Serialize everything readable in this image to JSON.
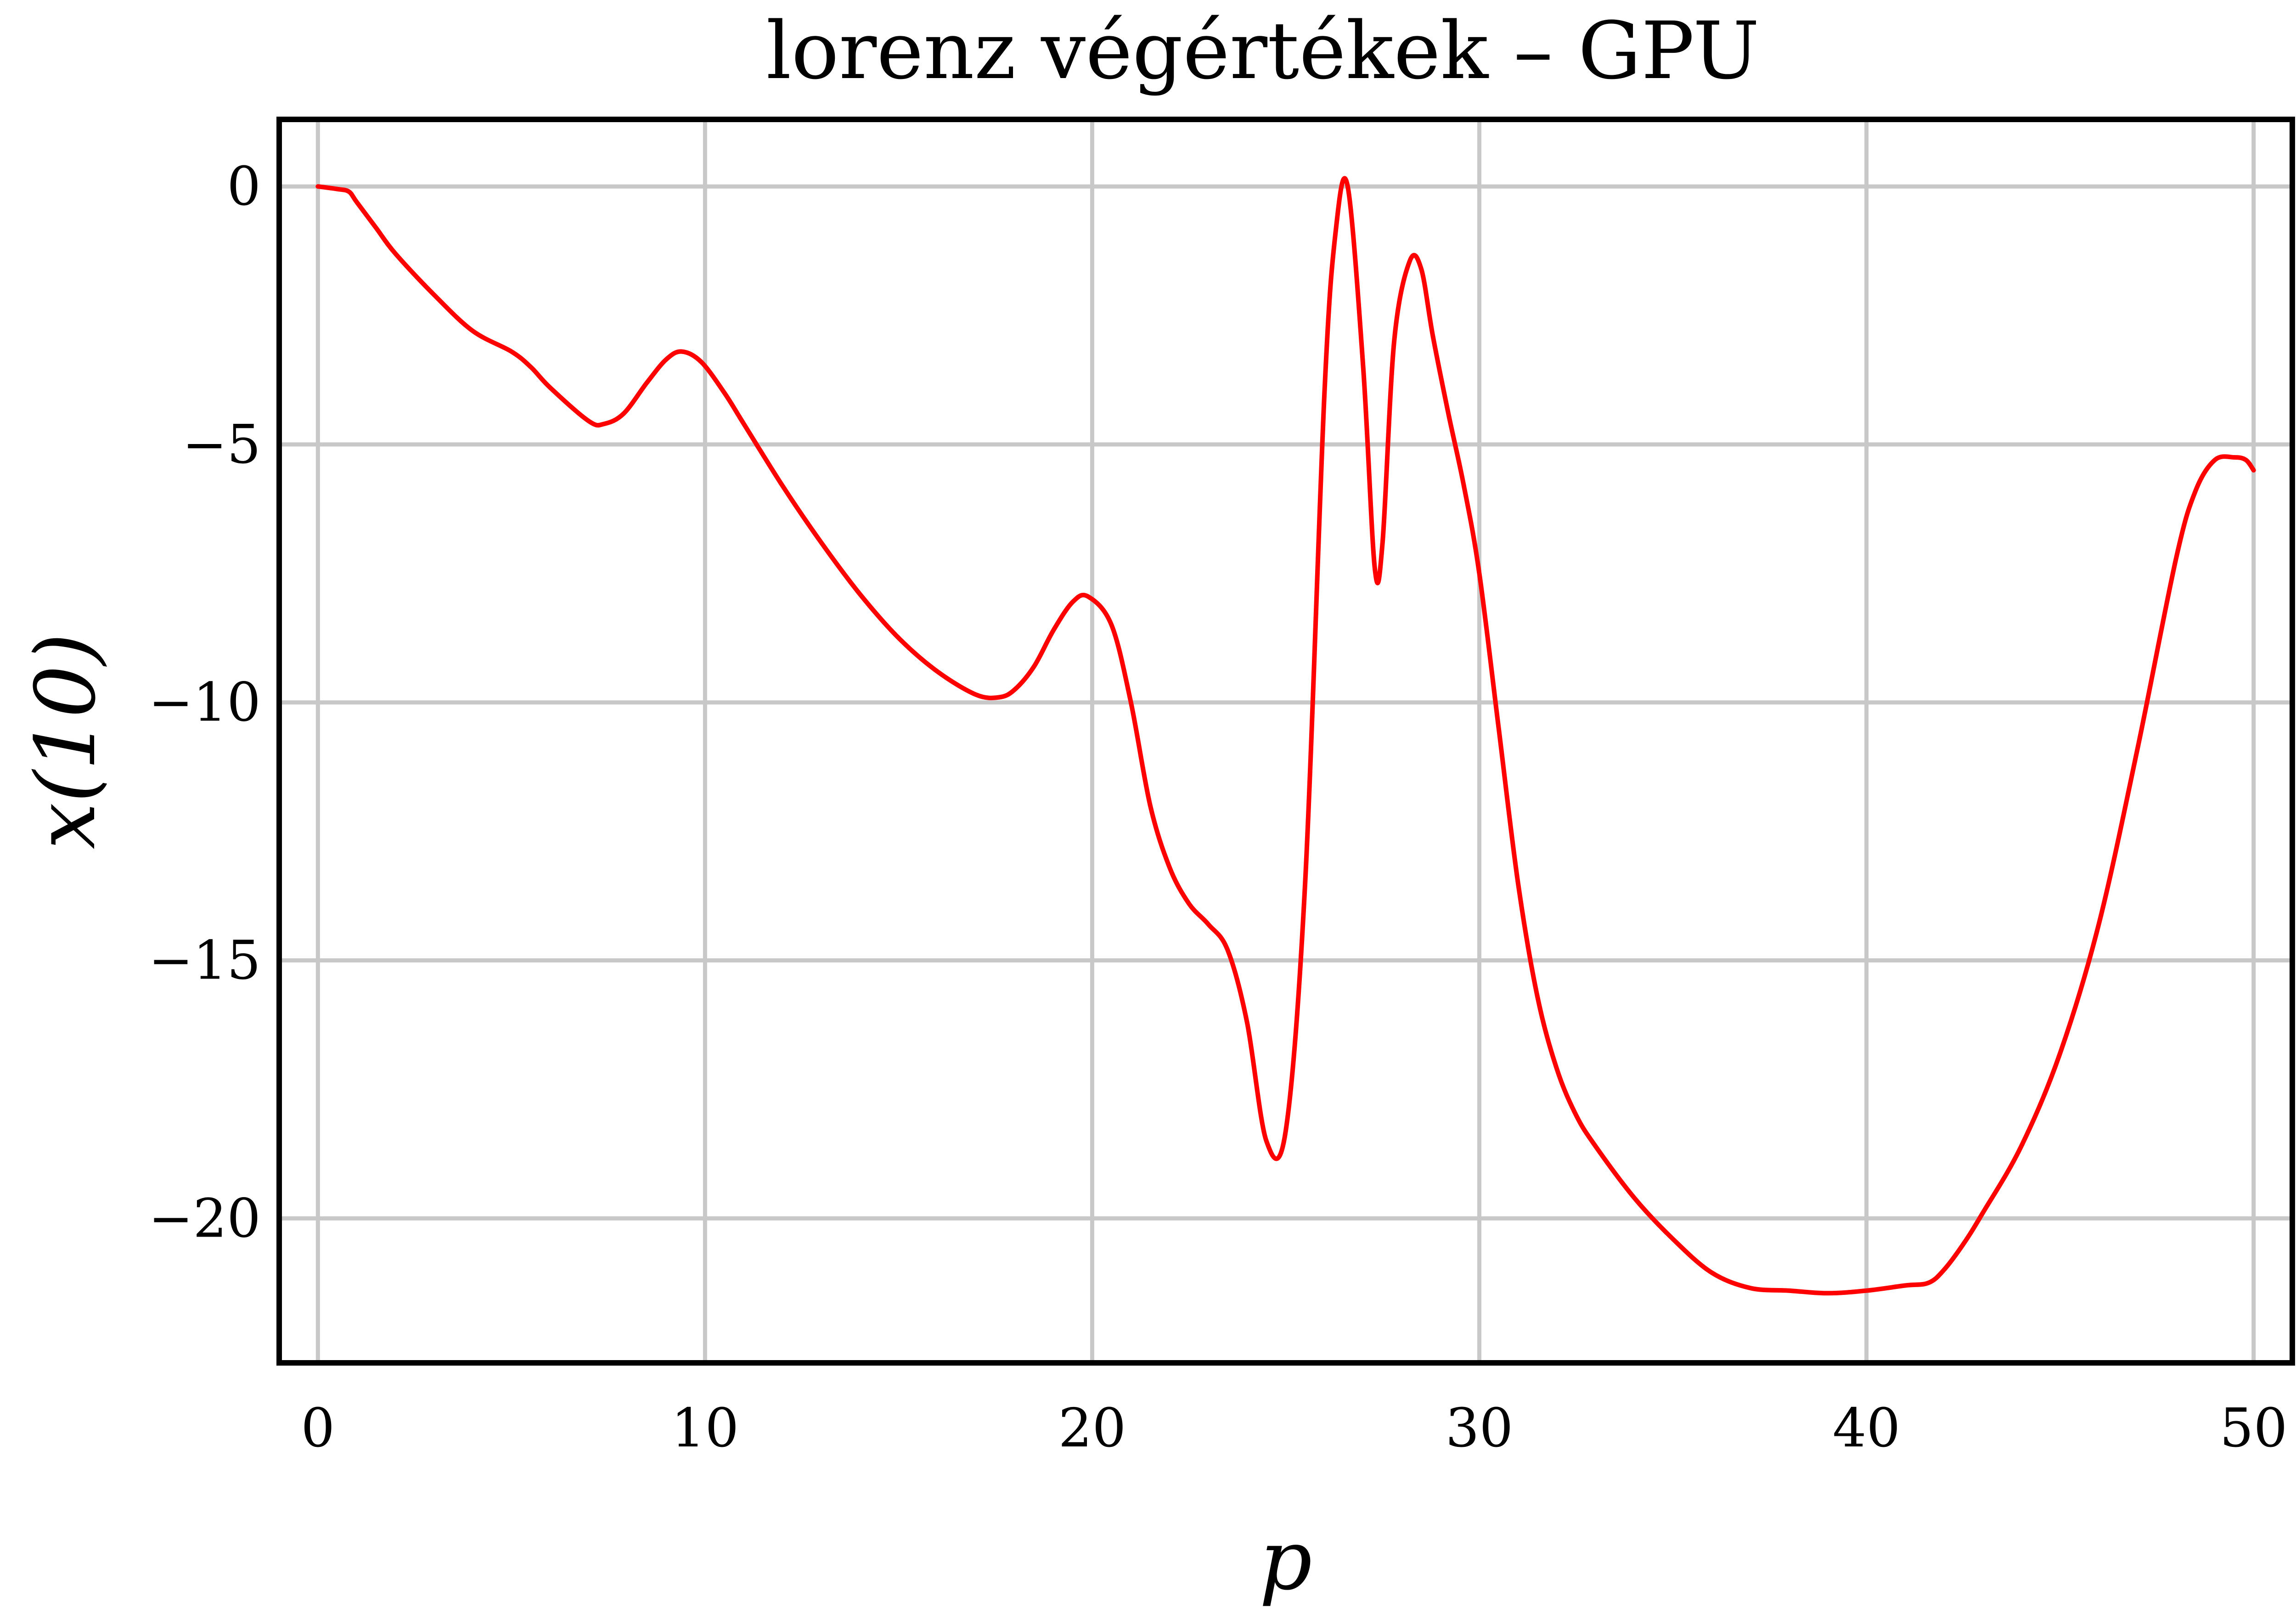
{
  "chart_data": {
    "type": "line",
    "title": "lorenz végértékek – GPU",
    "xlabel": "p",
    "ylabel": "x(10)",
    "xlim": [
      -1,
      51
    ],
    "ylim": [
      -22.8,
      1.3
    ],
    "xticks": [
      0,
      10,
      20,
      30,
      40,
      50
    ],
    "yticks": [
      0,
      -5,
      -10,
      -15,
      -20
    ],
    "xtick_labels": [
      "0",
      "10",
      "20",
      "30",
      "40",
      "50"
    ],
    "ytick_labels": [
      "0",
      "−5",
      "−10",
      "−15",
      "−20"
    ],
    "grid": true,
    "series": [
      {
        "color": "#ff0000",
        "x": [
          0,
          0.5,
          0.8,
          1.0,
          1.5,
          2.0,
          3.0,
          4.0,
          5.0,
          5.5,
          6.0,
          7.0,
          7.4,
          7.9,
          8.5,
          9.0,
          9.4,
          9.9,
          10.5,
          11.0,
          12.0,
          13.0,
          14.0,
          15.0,
          16.0,
          17.0,
          17.6,
          18.0,
          18.5,
          19.0,
          19.5,
          19.9,
          20.5,
          21.0,
          21.5,
          22.0,
          22.5,
          23.0,
          23.5,
          24.0,
          24.5,
          25.0,
          25.5,
          26.0,
          26.3,
          26.6,
          27.0,
          27.3,
          27.5,
          27.8,
          28.2,
          28.5,
          28.8,
          29.2,
          29.6,
          30.0,
          30.5,
          31.0,
          31.5,
          32.0,
          32.5,
          33.0,
          34.0,
          35.0,
          36.0,
          37.0,
          38.0,
          39.0,
          40.0,
          41.0,
          41.6,
          42.0,
          42.5,
          43.0,
          44.0,
          45.0,
          46.0,
          47.0,
          48.0,
          48.5,
          49.0,
          49.5,
          49.8,
          50.0
        ],
        "values": [
          0.0,
          -0.05,
          -0.1,
          -0.3,
          -0.8,
          -1.3,
          -2.1,
          -2.8,
          -3.2,
          -3.5,
          -3.9,
          -4.55,
          -4.6,
          -4.4,
          -3.8,
          -3.35,
          -3.2,
          -3.4,
          -4.0,
          -4.6,
          -5.8,
          -6.9,
          -7.9,
          -8.75,
          -9.4,
          -9.85,
          -9.9,
          -9.75,
          -9.3,
          -8.6,
          -8.05,
          -7.95,
          -8.5,
          -10.0,
          -12.0,
          -13.2,
          -13.9,
          -14.3,
          -14.8,
          -16.2,
          -18.5,
          -18.3,
          -13.5,
          -4.0,
          -0.8,
          0.0,
          -3.5,
          -7.4,
          -6.9,
          -3.0,
          -1.45,
          -1.6,
          -2.9,
          -4.4,
          -5.8,
          -7.5,
          -10.5,
          -13.5,
          -15.7,
          -17.1,
          -18.0,
          -18.6,
          -19.6,
          -20.4,
          -21.05,
          -21.35,
          -21.4,
          -21.45,
          -21.4,
          -21.3,
          -21.25,
          -21.0,
          -20.5,
          -19.9,
          -18.6,
          -16.8,
          -14.3,
          -10.9,
          -7.2,
          -5.9,
          -5.3,
          -5.25,
          -5.3,
          -5.5
        ]
      }
    ]
  }
}
